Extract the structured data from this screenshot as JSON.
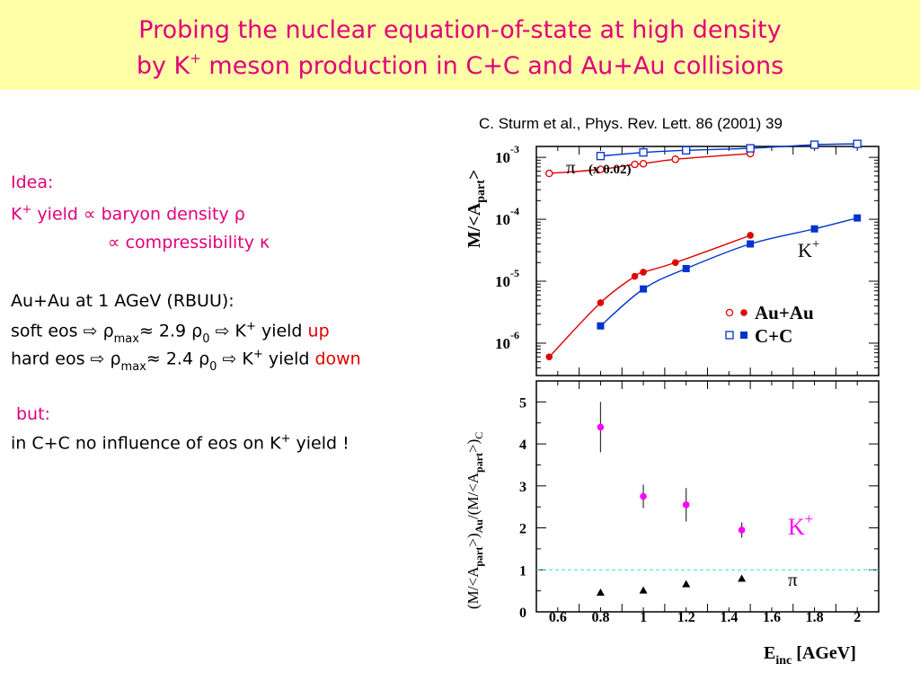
{
  "title": {
    "line1": "Probing the nuclear equation-of-state at high density",
    "line2_a": "by K",
    "line2_sup": "+",
    "line2_b": " meson production in C+C and Au+Au collisions"
  },
  "citation": "C. Sturm et al., Phys. Rev. Lett. 86 (2001) 39",
  "left": {
    "idea": "Idea:",
    "l1_a": "K",
    "l1_sup": "+",
    "l1_b": " yield ∝ baryon density ρ",
    "l2": "∝ compressibility κ",
    "l3": "Au+Au at 1 AGeV (RBUU):",
    "l4_a": "soft eos  ⇨ ρ",
    "l4_sub": "max",
    "l4_b": "≈ 2.9 ρ",
    "l4_sub2": "0",
    "l4_c": " ⇨ K",
    "l4_sup": "+",
    "l4_d": " yield ",
    "l4_e": "up",
    "l5_a": "hard eos ⇨ ρ",
    "l5_sub": "max",
    "l5_b": "≈ 2.4 ρ",
    "l5_sub2": "0",
    "l5_c": " ⇨ K",
    "l5_sup": "+",
    "l5_d": " yield ",
    "l5_e": "down",
    "but": "but:",
    "l6_a": "in C+C no influence of eos on K",
    "l6_sup": "+",
    "l6_b": " yield !"
  },
  "colors": {
    "title": "#e0007a",
    "au": "#e00000",
    "c": "#0033cc",
    "ratio": "#ff00ff",
    "dashed": "#33dddd"
  },
  "chart_data": [
    {
      "type": "scatter",
      "log_y": true,
      "ylim": [
        3e-07,
        0.0015
      ],
      "xlim": [
        0.5,
        2.1
      ],
      "ytick_labels": [
        "10",
        "10",
        "10",
        "10"
      ],
      "ytick_exps": [
        "-3",
        "-4",
        "-5",
        "-6"
      ],
      "ylabel_a": "M/<A",
      "ylabel_sub": "part",
      "ylabel_b": ">",
      "annotations": {
        "pi": "π",
        "pi_scale": "(x 0.02)",
        "kplus": "K",
        "kplus_sup": "+"
      },
      "legend": [
        {
          "label": "Au+Au"
        },
        {
          "label": "C+C"
        }
      ],
      "series": [
        {
          "name": "Au+Au",
          "particle": "π",
          "marker": "open-circle",
          "x": [
            0.56,
            0.8,
            0.96,
            1.0,
            1.15,
            1.5
          ],
          "y": [
            0.00055,
            0.00064,
            0.00077,
            0.00079,
            0.00093,
            0.00115
          ]
        },
        {
          "name": "C+C",
          "particle": "π",
          "marker": "open-square",
          "x": [
            0.8,
            1.0,
            1.2,
            1.5,
            1.8,
            2.0
          ],
          "y": [
            0.00105,
            0.0012,
            0.0013,
            0.0014,
            0.0016,
            0.00165
          ]
        },
        {
          "name": "Au+Au",
          "particle": "K+",
          "marker": "filled-circle",
          "x": [
            0.56,
            0.8,
            0.96,
            1.0,
            1.15,
            1.5
          ],
          "y": [
            6e-07,
            4.5e-06,
            1.2e-05,
            1.4e-05,
            2e-05,
            5.5e-05
          ]
        },
        {
          "name": "C+C",
          "particle": "K+",
          "marker": "filled-square",
          "x": [
            0.8,
            1.0,
            1.2,
            1.5,
            1.8,
            2.0
          ],
          "y": [
            1.9e-06,
            7.5e-06,
            1.6e-05,
            4e-05,
            7e-05,
            0.000105
          ]
        }
      ]
    },
    {
      "type": "scatter",
      "xlim": [
        0.5,
        2.1
      ],
      "ylim": [
        0,
        5.5
      ],
      "x_ticks": [
        "0.6",
        "0.8",
        "1",
        "1.2",
        "1.4",
        "1.6",
        "1.8",
        "2"
      ],
      "y_ticks": [
        "0",
        "1",
        "2",
        "3",
        "4",
        "5"
      ],
      "ylabel_a": "(M/<A",
      "ylabel_sub1": "part",
      "ylabel_b": ">)",
      "ylabel_sub2": "Au",
      "ylabel_c": "/(M/<A",
      "ylabel_sub3": "part",
      "ylabel_d": ">)",
      "ylabel_sub4": "C",
      "xlabel_a": "E",
      "xlabel_sub": "inc",
      "xlabel_b": " [AGeV]",
      "reference_line": 1,
      "annotations": {
        "kplus": "K",
        "kplus_sup": "+",
        "pi": "π"
      },
      "series": [
        {
          "name": "K+",
          "marker": "filled-circle",
          "x": [
            0.8,
            1.0,
            1.2,
            1.46
          ],
          "y": [
            4.4,
            2.75,
            2.55,
            1.95
          ],
          "err": [
            0.6,
            0.28,
            0.4,
            0.18
          ]
        },
        {
          "name": "π",
          "marker": "filled-triangle",
          "x": [
            0.8,
            1.0,
            1.2,
            1.46
          ],
          "y": [
            0.45,
            0.5,
            0.65,
            0.78
          ]
        }
      ]
    }
  ]
}
